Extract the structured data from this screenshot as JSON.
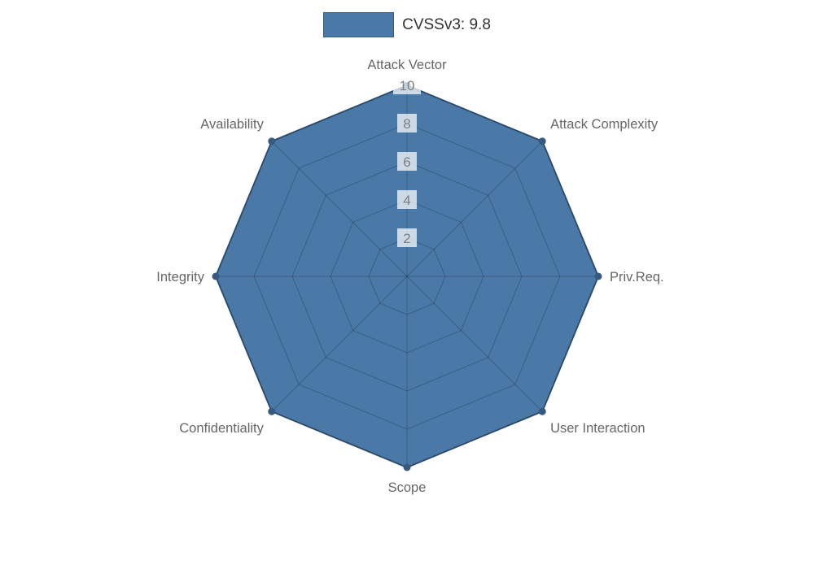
{
  "legend": {
    "label": "CVSSv3: 9.8"
  },
  "chart_data": {
    "type": "radar",
    "title": "",
    "legend_entries": [
      "CVSSv3: 9.8"
    ],
    "legend_position": "top",
    "categories": [
      "Attack Vector",
      "Attack Complexity",
      "Priv.Req.",
      "User Interaction",
      "Scope",
      "Confidentiality",
      "Integrity",
      "Availability"
    ],
    "series": [
      {
        "name": "CVSSv3: 9.8",
        "values": [
          10,
          10,
          10,
          10,
          10,
          10,
          10,
          10
        ]
      }
    ],
    "ticks": [
      2,
      4,
      6,
      8,
      10
    ],
    "rmin": 0,
    "rmax": 10,
    "grid": true,
    "grid_shape": "polygon",
    "fill_color": "#4a79a8",
    "border_color": "#36597e",
    "grid_color": "rgba(0,0,0,0.22)",
    "label_color": "#666666",
    "tick_color": "#7d7d7d",
    "tick_backdrop": "rgba(255,255,255,0.72)",
    "legend_text_color": "#333333"
  }
}
